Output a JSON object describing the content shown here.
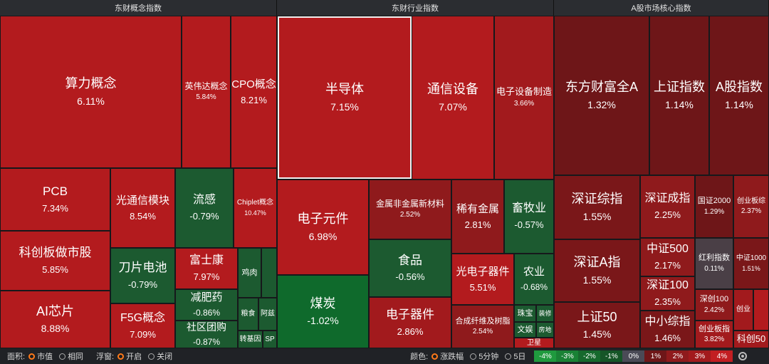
{
  "headers": [
    "东财概念指数",
    "东财行业指数",
    "A股市场核心指数"
  ],
  "colors": {
    "up_strong": "#b31b1e",
    "up_mid": "#8f1a1c",
    "up_low": "#6e1618",
    "flat": "#4a3f46",
    "down": "#1c5a30",
    "down_dark": "#174a28"
  },
  "tiles": [
    {
      "name": "算力概念",
      "value": "6.11%",
      "color": "#b31b1e"
    },
    {
      "name": "英伟达概念",
      "value": "5.84%",
      "color": "#b31b1e"
    },
    {
      "name": "CPO概念",
      "value": "8.21%",
      "color": "#b31b1e"
    },
    {
      "name": "PCB",
      "value": "7.34%",
      "color": "#b31b1e"
    },
    {
      "name": "光通信模块",
      "value": "8.54%",
      "color": "#b31b1e"
    },
    {
      "name": "流感",
      "value": "-0.79%",
      "color": "#1c5a30"
    },
    {
      "name": "Chiplet概念",
      "value": "10.47%",
      "color": "#b31b1e"
    },
    {
      "name": "科创板做市股",
      "value": "5.85%",
      "color": "#b31b1e"
    },
    {
      "name": "刀片电池",
      "value": "-0.79%",
      "color": "#1c5a30"
    },
    {
      "name": "富士康",
      "value": "7.97%",
      "color": "#b31b1e"
    },
    {
      "name": "鸡肉",
      "value": "",
      "color": "#1c5a30"
    },
    {
      "name": "",
      "value": "",
      "color": "#1c5a30"
    },
    {
      "name": "减肥药",
      "value": "-0.86%",
      "color": "#1c5a30"
    },
    {
      "name": "AI芯片",
      "value": "8.88%",
      "color": "#b31b1e"
    },
    {
      "name": "F5G概念",
      "value": "7.09%",
      "color": "#b31b1e"
    },
    {
      "name": "社区团购",
      "value": "-0.87%",
      "color": "#1c5a30"
    },
    {
      "name": "粮食",
      "value": "",
      "color": "#1c5a30"
    },
    {
      "name": "阿兹",
      "value": "",
      "color": "#1c5a30"
    },
    {
      "name": "转基因",
      "value": "",
      "color": "#1c5a30"
    },
    {
      "name": "SP",
      "value": "",
      "color": "#1c5a30"
    },
    {
      "name": "半导体",
      "value": "7.15%",
      "color": "#b31b1e"
    },
    {
      "name": "通信设备",
      "value": "7.07%",
      "color": "#b31b1e"
    },
    {
      "name": "电子设备制造",
      "value": "3.66%",
      "color": "#a21a1d"
    },
    {
      "name": "电子元件",
      "value": "6.98%",
      "color": "#b31b1e"
    },
    {
      "name": "金属非金属新材料",
      "value": "2.52%",
      "color": "#8f1a1c"
    },
    {
      "name": "稀有金属",
      "value": "2.81%",
      "color": "#8f1a1c"
    },
    {
      "name": "畜牧业",
      "value": "-0.57%",
      "color": "#1c5a30"
    },
    {
      "name": "食品",
      "value": "-0.56%",
      "color": "#1c5a30"
    },
    {
      "name": "光电子器件",
      "value": "5.51%",
      "color": "#b31b1e"
    },
    {
      "name": "农业",
      "value": "-0.68%",
      "color": "#1c5a30"
    },
    {
      "name": "煤炭",
      "value": "-1.02%",
      "color": "#0f6a2c"
    },
    {
      "name": "电子器件",
      "value": "2.86%",
      "color": "#a21a1d"
    },
    {
      "name": "合成纤维及树脂",
      "value": "2.54%",
      "color": "#8f1a1c"
    },
    {
      "name": "珠宝",
      "value": "",
      "color": "#1c5a30"
    },
    {
      "name": "装修",
      "value": "",
      "color": "#1c5a30"
    },
    {
      "name": "文娱",
      "value": "",
      "color": "#1c5a30"
    },
    {
      "name": "房地",
      "value": "",
      "color": "#1c5a30"
    },
    {
      "name": "卫星",
      "value": "",
      "color": "#b31b1e"
    },
    {
      "name": "东方财富全A",
      "value": "1.32%",
      "color": "#6e1618"
    },
    {
      "name": "上证指数",
      "value": "1.14%",
      "color": "#6e1618"
    },
    {
      "name": "A股指数",
      "value": "1.14%",
      "color": "#6e1618"
    },
    {
      "name": "深证综指",
      "value": "1.55%",
      "color": "#7a1719"
    },
    {
      "name": "深证成指",
      "value": "2.25%",
      "color": "#8f1a1c"
    },
    {
      "name": "国证2000",
      "value": "1.29%",
      "color": "#6e1618"
    },
    {
      "name": "创业板综",
      "value": "2.37%",
      "color": "#8f1a1c"
    },
    {
      "name": "深证A指",
      "value": "1.55%",
      "color": "#7a1719"
    },
    {
      "name": "中证500",
      "value": "2.17%",
      "color": "#8f1a1c"
    },
    {
      "name": "红利指数",
      "value": "0.11%",
      "color": "#4a3f46"
    },
    {
      "name": "中证1000",
      "value": "1.51%",
      "color": "#7a1719"
    },
    {
      "name": "深证100",
      "value": "2.35%",
      "color": "#8f1a1c"
    },
    {
      "name": "深创100",
      "value": "2.42%",
      "color": "#8f1a1c"
    },
    {
      "name": "创业",
      "value": "",
      "color": "#a21a1d"
    },
    {
      "name": "",
      "value": "",
      "color": "#b31b1e"
    },
    {
      "name": "上证50",
      "value": "1.45%",
      "color": "#7a1719"
    },
    {
      "name": "中小综指",
      "value": "1.46%",
      "color": "#7a1719"
    },
    {
      "name": "创业板指",
      "value": "3.82%",
      "color": "#a21a1d"
    },
    {
      "name": "科创50",
      "value": "",
      "color": "#a21a1d"
    }
  ],
  "bottom": {
    "area_label": "面积:",
    "area_opt1": "市值",
    "area_opt2": "相同",
    "float_label": "浮窗:",
    "float_opt1": "开启",
    "float_opt2": "关闭",
    "color_label": "颜色:",
    "color_opt1": "涨跌幅",
    "color_opt2": "5分钟",
    "color_opt3": "5日"
  },
  "legend": [
    {
      "label": "-4%",
      "color": "#1f9a3e"
    },
    {
      "label": "-3%",
      "color": "#198235"
    },
    {
      "label": "-2%",
      "color": "#16692d"
    },
    {
      "label": "-1%",
      "color": "#155527"
    },
    {
      "label": "0%",
      "color": "#4a4a56"
    },
    {
      "label": "1%",
      "color": "#6e1618"
    },
    {
      "label": "2%",
      "color": "#8f1a1c"
    },
    {
      "label": "3%",
      "color": "#a21a1d"
    },
    {
      "label": "4%",
      "color": "#c21e22"
    }
  ]
}
